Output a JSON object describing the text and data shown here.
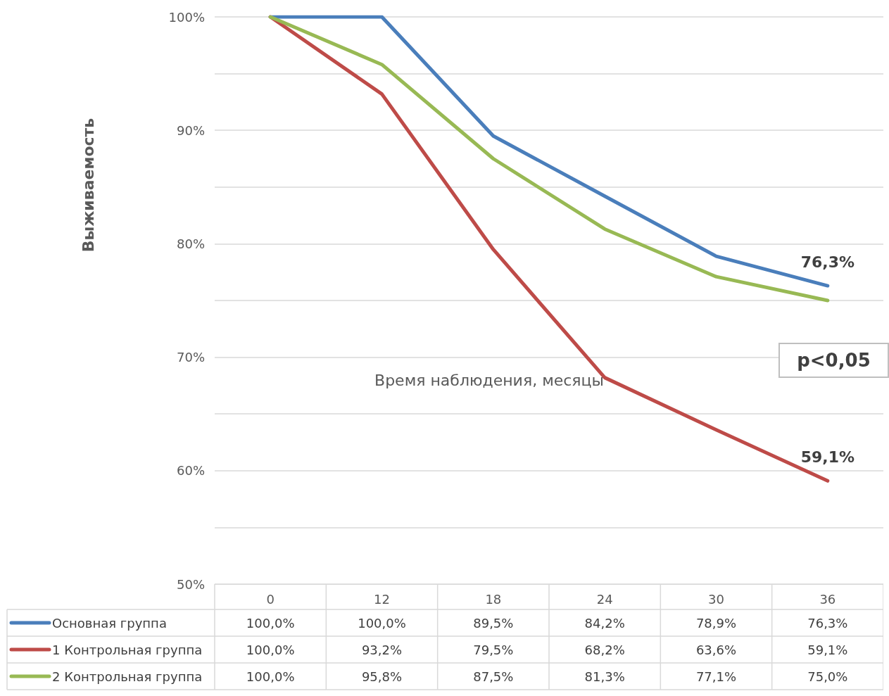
{
  "chart_data": {
    "type": "line",
    "xlabel": "Время наблюдения, месяцы",
    "ylabel": "Выживаемость",
    "categories": [
      "0",
      "12",
      "18",
      "24",
      "30",
      "36"
    ],
    "series": [
      {
        "name": "Основная группа",
        "color": "#4a7ebb",
        "values": [
          100,
          100,
          89.5,
          84.2,
          78.9,
          76.3
        ],
        "value_labels": [
          "100,0%",
          "100,0%",
          "89,5%",
          "84,2%",
          "78,9%",
          "76,3%"
        ]
      },
      {
        "name": "1 Контрольная группа",
        "color": "#be4b48",
        "values": [
          100,
          93.2,
          79.5,
          68.2,
          63.6,
          59.1
        ],
        "value_labels": [
          "100,0%",
          "93,2%",
          "79,5%",
          "68,2%",
          "63,6%",
          "59,1%"
        ]
      },
      {
        "name": "2 Контрольная группа",
        "color": "#98b954",
        "values": [
          100,
          95.8,
          87.5,
          81.3,
          77.1,
          75.0
        ],
        "value_labels": [
          "100,0%",
          "95,8%",
          "87,5%",
          "81,3%",
          "77,1%",
          "75,0%"
        ]
      }
    ],
    "ylim": [
      50,
      100
    ],
    "yticks": [
      {
        "value": 50,
        "label": "50%"
      },
      {
        "value": 55,
        "label": null
      },
      {
        "value": 60,
        "label": "60%"
      },
      {
        "value": 65,
        "label": null
      },
      {
        "value": 70,
        "label": "70%"
      },
      {
        "value": 75,
        "label": null
      },
      {
        "value": 80,
        "label": "80%"
      },
      {
        "value": 85,
        "label": null
      },
      {
        "value": 90,
        "label": "90%"
      },
      {
        "value": 95,
        "label": null
      },
      {
        "value": 100,
        "label": "100%"
      }
    ],
    "grid": "y",
    "legend": "bottom",
    "marker": "none",
    "line_style": "solid",
    "annotations": [
      {
        "text": "76,3%",
        "x": "36",
        "y": 76.3
      },
      {
        "text": "59,1%",
        "x": "36",
        "y": 59.1
      },
      "p<0,05"
    ]
  }
}
